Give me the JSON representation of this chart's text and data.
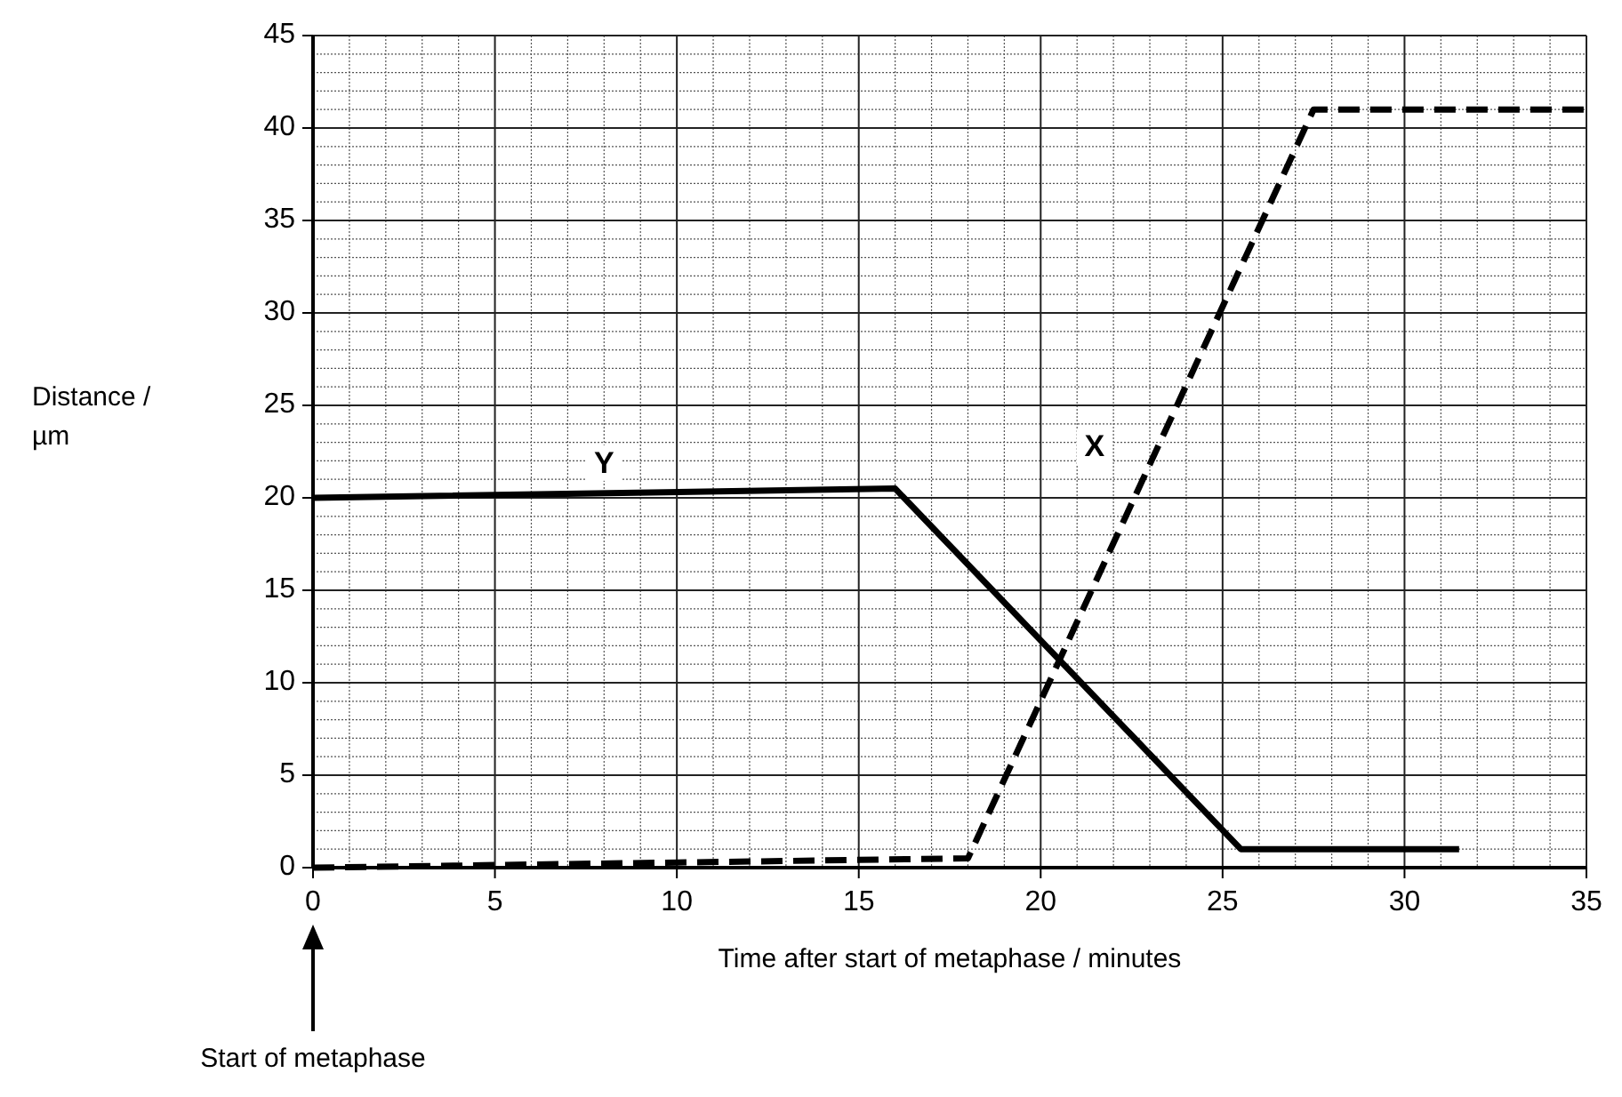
{
  "chart_data": {
    "type": "line",
    "xlabel": "Time after start of metaphase / minutes",
    "ylabel": "Distance / µm",
    "xlim": [
      0,
      35
    ],
    "ylim": [
      0,
      45
    ],
    "xticks": [
      0,
      5,
      10,
      15,
      20,
      25,
      30,
      35
    ],
    "yticks": [
      0,
      5,
      10,
      15,
      20,
      25,
      30,
      35,
      40,
      45
    ],
    "grid": true,
    "marker": "none",
    "series": [
      {
        "name": "Y",
        "color": "#000000",
        "line_style": "solid",
        "x": [
          0,
          16,
          25.5,
          31.5
        ],
        "values": [
          20,
          20.5,
          1,
          1
        ]
      },
      {
        "name": "X",
        "color": "#000000",
        "line_style": "dashed",
        "x": [
          0,
          18,
          27.5,
          35
        ],
        "values": [
          0,
          0.5,
          41,
          41
        ]
      }
    ],
    "annotations": [
      "Start of metaphase"
    ]
  }
}
